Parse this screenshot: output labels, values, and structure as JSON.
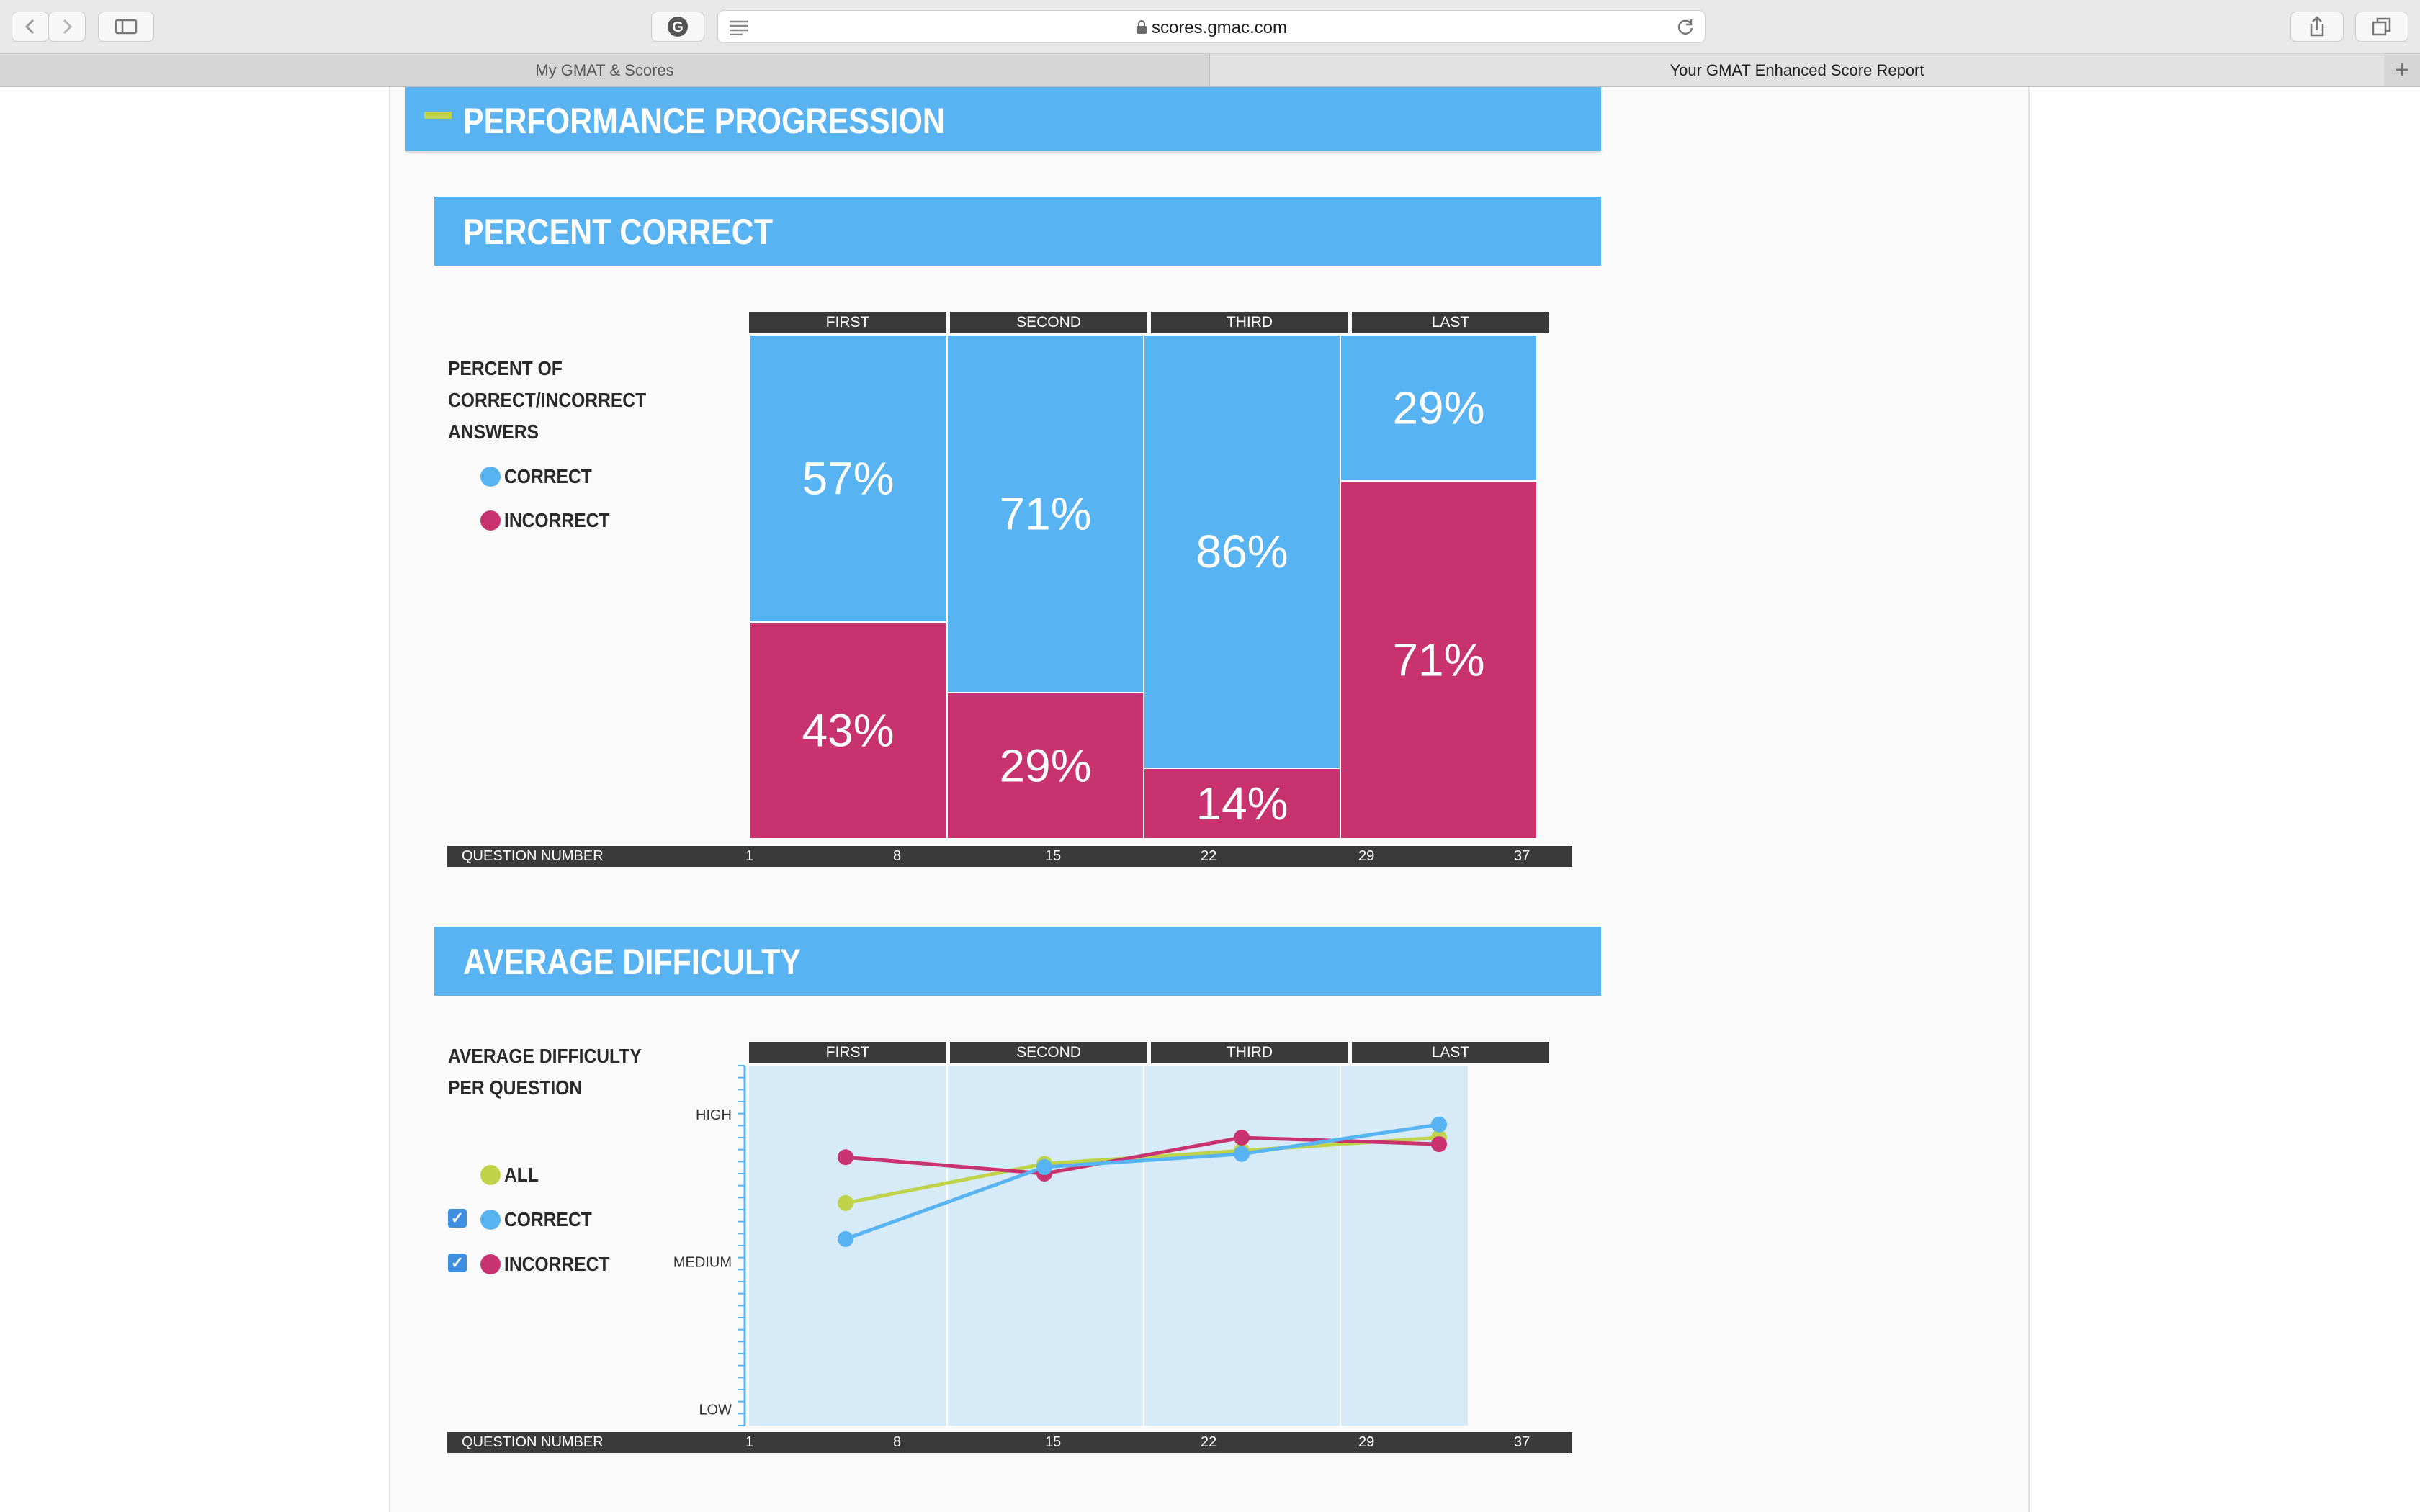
{
  "browser": {
    "url": "scores.gmac.com",
    "tabs": [
      {
        "label": "My GMAT & Scores",
        "active": false
      },
      {
        "label": "Your GMAT Enhanced Score Report",
        "active": true
      }
    ]
  },
  "sections": {
    "main_title": "PERFORMANCE PROGRESSION",
    "percent_correct": {
      "title": "PERCENT CORRECT",
      "legend_title_lines": [
        "PERCENT OF",
        "CORRECT/INCORRECT",
        "ANSWERS"
      ],
      "legend": [
        {
          "label": "CORRECT",
          "color": "#58b3f2"
        },
        {
          "label": "INCORRECT",
          "color": "#c8336f"
        }
      ]
    },
    "average_difficulty": {
      "title": "AVERAGE DIFFICULTY",
      "legend_title_lines": [
        "AVERAGE DIFFICULTY",
        "PER QUESTION"
      ],
      "legend": [
        {
          "label": "ALL",
          "color": "#bfd34a",
          "checkbox": false
        },
        {
          "label": "CORRECT",
          "color": "#58b3f2",
          "checkbox": true
        },
        {
          "label": "INCORRECT",
          "color": "#c8336f",
          "checkbox": true
        }
      ]
    }
  },
  "segments": [
    "FIRST",
    "SECOND",
    "THIRD",
    "LAST"
  ],
  "question_axis": {
    "label": "QUESTION NUMBER",
    "ticks": [
      "1",
      "8",
      "15",
      "22",
      "29",
      "37"
    ]
  },
  "chart_data": [
    {
      "type": "bar",
      "stacked": true,
      "title": "PERCENT CORRECT",
      "categories": [
        "FIRST",
        "SECOND",
        "THIRD",
        "LAST"
      ],
      "series": [
        {
          "name": "CORRECT",
          "color": "#58b3f2",
          "values": [
            57,
            71,
            86,
            29
          ],
          "labels": [
            "57%",
            "71%",
            "86%",
            "29%"
          ]
        },
        {
          "name": "INCORRECT",
          "color": "#c8336f",
          "values": [
            43,
            29,
            14,
            71
          ],
          "labels": [
            "43%",
            "29%",
            "14%",
            "71%"
          ]
        }
      ],
      "ylim": [
        0,
        100
      ],
      "xlabel": "QUESTION NUMBER"
    },
    {
      "type": "line",
      "title": "AVERAGE DIFFICULTY",
      "categories": [
        "FIRST",
        "SECOND",
        "THIRD",
        "LAST"
      ],
      "y_ticks": [
        "LOW",
        "MEDIUM",
        "HIGH"
      ],
      "series": [
        {
          "name": "ALL",
          "color": "#bfd34a",
          "values": [
            0.68,
            0.8,
            0.84,
            0.88
          ]
        },
        {
          "name": "CORRECT",
          "color": "#58b3f2",
          "values": [
            0.57,
            0.79,
            0.83,
            0.92
          ]
        },
        {
          "name": "INCORRECT",
          "color": "#c8336f",
          "values": [
            0.82,
            0.77,
            0.88,
            0.86
          ]
        }
      ],
      "ylim": [
        0,
        1.1
      ],
      "xlabel": "QUESTION NUMBER"
    }
  ]
}
